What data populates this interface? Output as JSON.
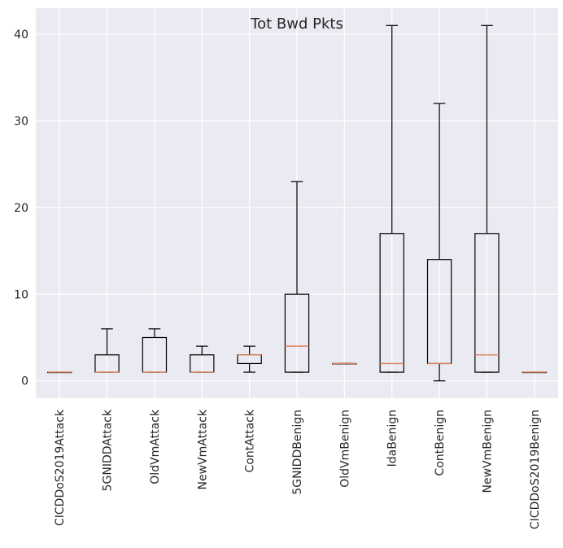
{
  "chart_data": {
    "type": "box",
    "title": "Tot Bwd Pkts",
    "xlabel": "",
    "ylabel": "",
    "ylim": [
      -2,
      43
    ],
    "yticks": [
      0,
      10,
      20,
      30,
      40
    ],
    "grid": true,
    "categories": [
      "CICDDoS2019Attack",
      "5GNIDDAttack",
      "OldVmAttack",
      "NewVmAttack",
      "ContAttack",
      "5GNIDDBenign",
      "OldVmBenign",
      "IdaBenign",
      "ContBenign",
      "NewVmBenign",
      "CICDDoS2019Benign"
    ],
    "boxes": [
      {
        "whislo": 1,
        "q1": 1,
        "med": 1,
        "q3": 1,
        "whishi": 1
      },
      {
        "whislo": 1,
        "q1": 1,
        "med": 1,
        "q3": 3,
        "whishi": 6
      },
      {
        "whislo": 1,
        "q1": 1,
        "med": 1,
        "q3": 5,
        "whishi": 6
      },
      {
        "whislo": 1,
        "q1": 1,
        "med": 1,
        "q3": 3,
        "whishi": 4
      },
      {
        "whislo": 1,
        "q1": 2,
        "med": 3,
        "q3": 3,
        "whishi": 4
      },
      {
        "whislo": 1,
        "q1": 1,
        "med": 4,
        "q3": 10,
        "whishi": 23
      },
      {
        "whislo": 2,
        "q1": 2,
        "med": 2,
        "q3": 2,
        "whishi": 2
      },
      {
        "whislo": 1,
        "q1": 1,
        "med": 2,
        "q3": 17,
        "whishi": 41
      },
      {
        "whislo": 0,
        "q1": 2,
        "med": 2,
        "q3": 14,
        "whishi": 32
      },
      {
        "whislo": 1,
        "q1": 1,
        "med": 3,
        "q3": 17,
        "whishi": 41
      },
      {
        "whislo": 1,
        "q1": 1,
        "med": 1,
        "q3": 1,
        "whishi": 1
      }
    ],
    "colors": {
      "background": "#eaeaf2",
      "grid": "#ffffff",
      "box": "#000000",
      "median": "#e0825a",
      "text": "#262626"
    }
  }
}
